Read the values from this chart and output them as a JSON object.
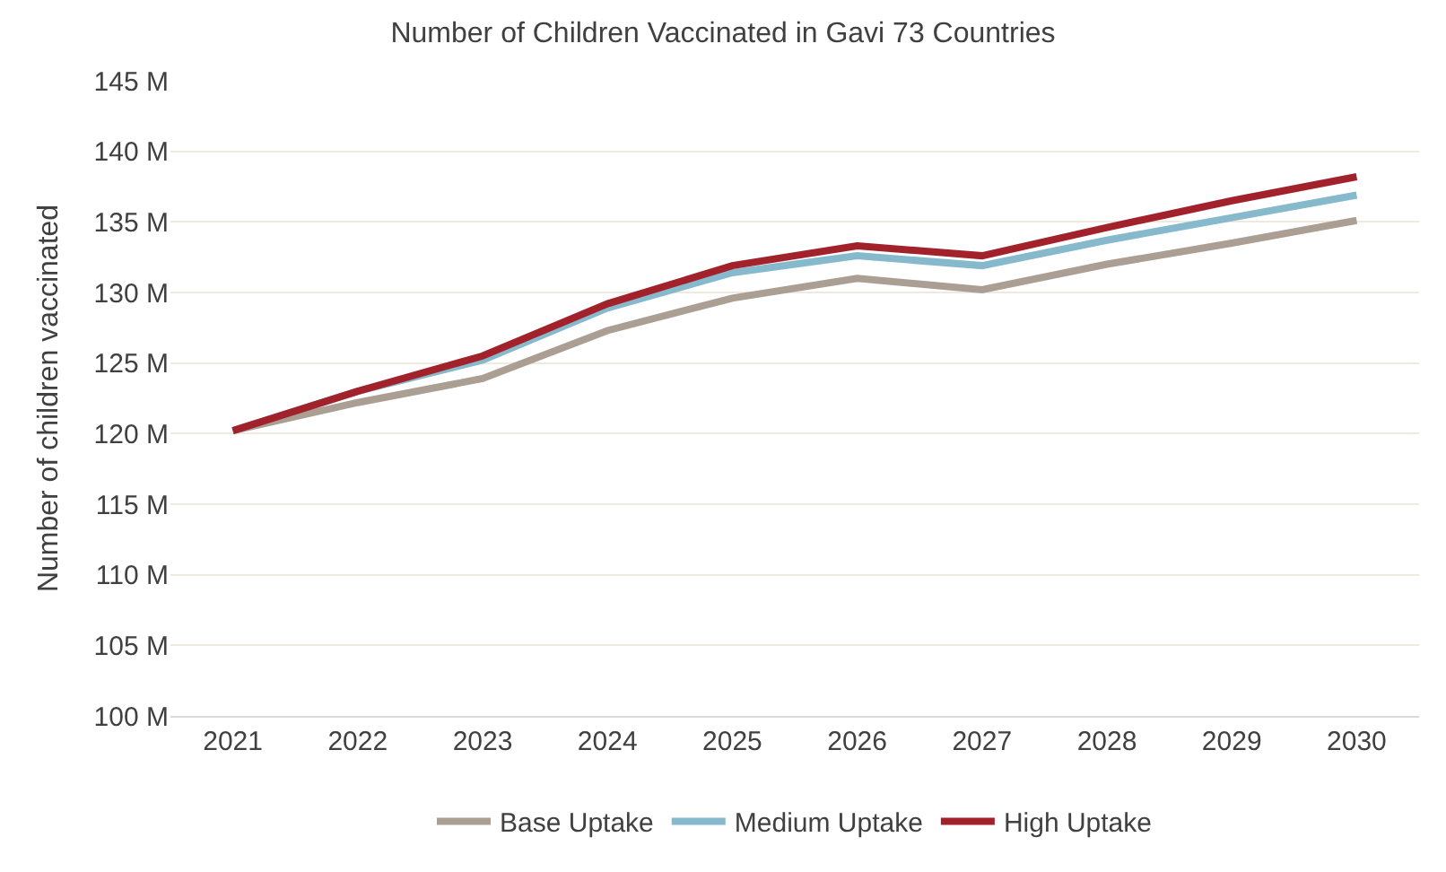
{
  "chart_data": {
    "type": "line",
    "title": "Number of Children Vaccinated in Gavi 73 Countries",
    "ylabel": "Number of children vaccinated",
    "categories": [
      "2021",
      "2022",
      "2023",
      "2024",
      "2025",
      "2026",
      "2027",
      "2028",
      "2029",
      "2030"
    ],
    "series": [
      {
        "name": "Base Uptake",
        "color": "#ab9f93",
        "values": [
          120.2,
          122.2,
          123.9,
          127.3,
          129.6,
          131.0,
          130.2,
          132.0,
          133.5,
          135.1
        ]
      },
      {
        "name": "Medium Uptake",
        "color": "#86b9cc",
        "values": [
          120.2,
          123.0,
          125.2,
          128.9,
          131.4,
          132.6,
          131.9,
          133.7,
          135.3,
          136.9
        ]
      },
      {
        "name": "High Uptake",
        "color": "#a2222c",
        "values": [
          120.2,
          123.0,
          125.5,
          129.2,
          131.9,
          133.3,
          132.6,
          134.6,
          136.5,
          138.2
        ]
      }
    ],
    "ylim": [
      100,
      145
    ],
    "yticks": [
      {
        "value": 100,
        "label": "100 M"
      },
      {
        "value": 105,
        "label": "105 M"
      },
      {
        "value": 110,
        "label": "110 M"
      },
      {
        "value": 115,
        "label": "115 M"
      },
      {
        "value": 120,
        "label": "120 M"
      },
      {
        "value": 125,
        "label": "125 M"
      },
      {
        "value": 130,
        "label": "130 M"
      },
      {
        "value": 135,
        "label": "135 M"
      },
      {
        "value": 140,
        "label": "140 M"
      },
      {
        "value": 145,
        "label": "145 M"
      }
    ],
    "grid": "y",
    "legend": "bottom",
    "marker": "none",
    "line_style": "solid"
  }
}
